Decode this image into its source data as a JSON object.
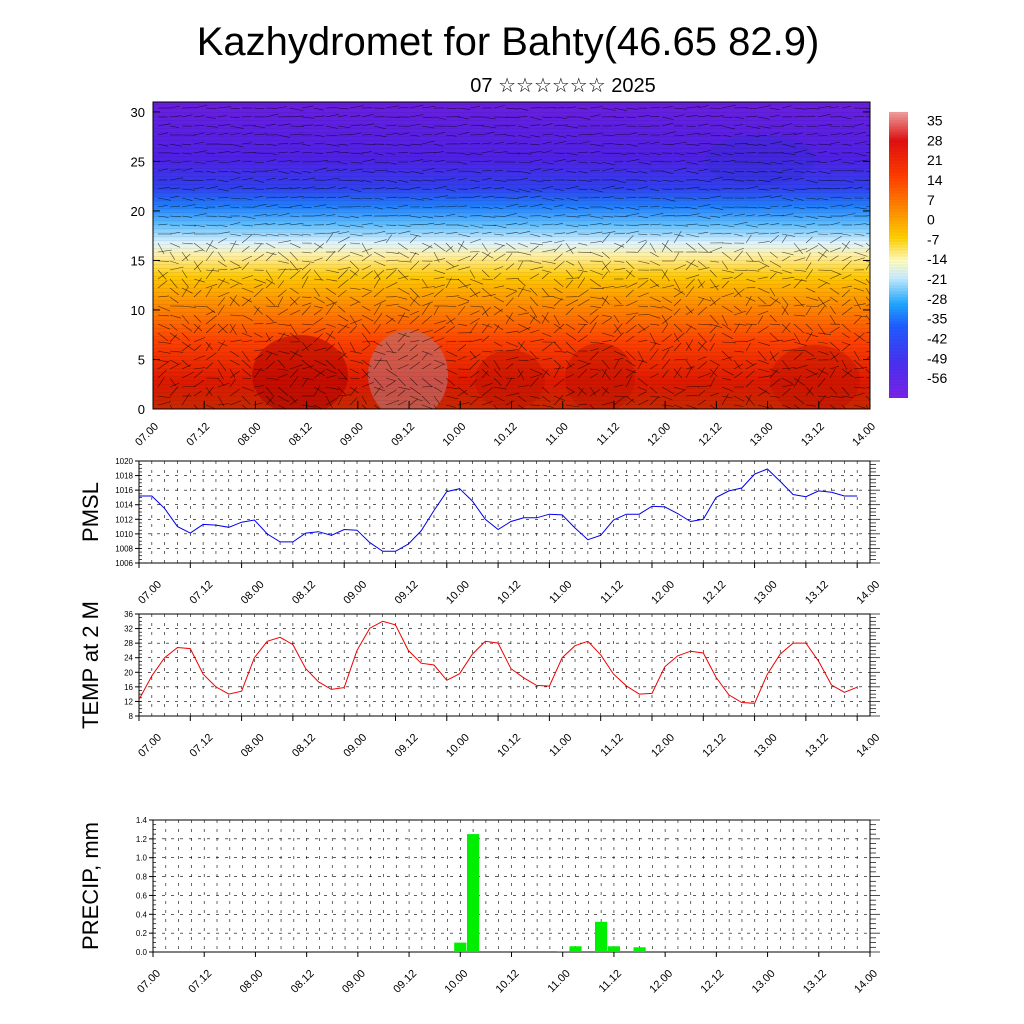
{
  "title": "Kazhydromet for Bahty(46.65 82.9)",
  "subtitle": "07 ☆☆☆☆☆☆ 2025",
  "x_ticks": [
    "07.00",
    "07.12",
    "08.00",
    "08.12",
    "09.00",
    "09.12",
    "10.00",
    "10.12",
    "11.00",
    "11.12",
    "12.00",
    "12.12",
    "13.00",
    "13.12",
    "14.00"
  ],
  "colors": {
    "pmsl_line": "#0000ee",
    "temp_line": "#ee0000",
    "precip_bar": "#00ee00"
  },
  "chart_data": [
    {
      "type": "heatmap",
      "name": "temperature-altitude cross-section",
      "x": [
        "07.00",
        "07.12",
        "08.00",
        "08.12",
        "09.00",
        "09.12",
        "10.00",
        "10.12",
        "11.00",
        "11.12",
        "12.00",
        "12.12",
        "13.00",
        "13.12",
        "14.00"
      ],
      "ylim": [
        0,
        31
      ],
      "y_ticks": [
        0,
        5,
        10,
        15,
        20,
        25,
        30
      ],
      "colorbar_labels": [
        "35",
        "28",
        "21",
        "14",
        "7",
        "0",
        "-7",
        "-14",
        "-21",
        "-28",
        "-35",
        "-42",
        "-49",
        "-56"
      ],
      "colorbar_range": [
        -63,
        38
      ],
      "overlay": "wind vectors"
    },
    {
      "type": "line",
      "ylabel": "PMSL",
      "ylim": [
        1006,
        1020
      ],
      "y_ticks": [
        "1006",
        "1008",
        "1010",
        "1012",
        "1014",
        "1016",
        "1018",
        "1020"
      ],
      "grid": true,
      "x_step_hours": 3,
      "values": [
        1015.2,
        1015.2,
        1013.5,
        1011.0,
        1010.1,
        1011.3,
        1011.2,
        1010.9,
        1011.6,
        1011.9,
        1010.0,
        1008.9,
        1008.9,
        1010.1,
        1010.3,
        1009.8,
        1010.6,
        1010.5,
        1008.8,
        1007.6,
        1007.6,
        1008.6,
        1010.4,
        1013.2,
        1015.8,
        1016.2,
        1014.5,
        1012.0,
        1010.6,
        1011.7,
        1012.2,
        1012.2,
        1012.7,
        1012.6,
        1010.8,
        1009.2,
        1009.8,
        1011.9,
        1012.7,
        1012.7,
        1013.8,
        1013.7,
        1012.8,
        1011.7,
        1012.0,
        1015.0,
        1015.9,
        1016.3,
        1018.2,
        1018.9,
        1017.2,
        1015.4,
        1015.1,
        1015.9,
        1015.7,
        1015.2,
        1015.2
      ]
    },
    {
      "type": "line",
      "ylabel": "TEMP at 2 M",
      "ylim": [
        8,
        36
      ],
      "y_ticks": [
        "8",
        "12",
        "16",
        "20",
        "24",
        "28",
        "32",
        "36"
      ],
      "grid": true,
      "x_step_hours": 3,
      "values": [
        12.5,
        19.0,
        24.0,
        26.8,
        26.5,
        19.5,
        16.0,
        14.0,
        14.8,
        24.0,
        28.5,
        29.6,
        27.6,
        21.0,
        17.4,
        15.3,
        15.8,
        26.0,
        32.1,
        34.0,
        33.0,
        26.0,
        22.5,
        22.0,
        17.8,
        19.6,
        25.0,
        28.5,
        28.0,
        21.0,
        18.5,
        16.4,
        16.2,
        24.0,
        27.3,
        28.5,
        24.8,
        19.5,
        16.3,
        14.0,
        14.2,
        21.5,
        24.5,
        25.8,
        25.3,
        18.6,
        13.8,
        11.7,
        11.5,
        19.5,
        25.0,
        28.0,
        28.0,
        23.0,
        16.5,
        14.5,
        15.9
      ]
    },
    {
      "type": "bar",
      "ylabel": "PRECIP, mm",
      "ylim": [
        0,
        1.4
      ],
      "y_ticks": [
        "0.0",
        "0.2",
        "0.4",
        "0.6",
        "0.8",
        "1.0",
        "1.2",
        "1.4"
      ],
      "grid": true,
      "x_step_hours": 3,
      "bars": [
        {
          "t_hours": 72,
          "value": 0.1
        },
        {
          "t_hours": 75,
          "value": 1.25
        },
        {
          "t_hours": 96,
          "value": 0.01
        },
        {
          "t_hours": 99,
          "value": 0.06
        },
        {
          "t_hours": 105,
          "value": 0.32
        },
        {
          "t_hours": 108,
          "value": 0.06
        },
        {
          "t_hours": 114,
          "value": 0.05
        }
      ]
    }
  ]
}
